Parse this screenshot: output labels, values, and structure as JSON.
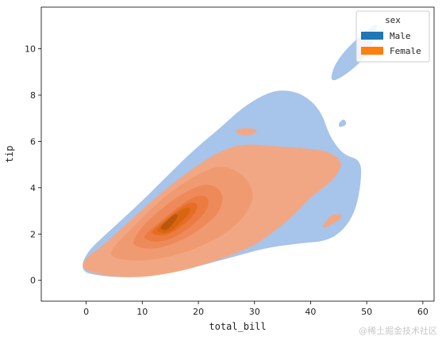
{
  "chart_data": {
    "type": "kde-filled-contour",
    "xlabel": "total_bill",
    "ylabel": "tip",
    "xlim": [
      -8,
      62
    ],
    "ylim": [
      -0.9,
      11.8
    ],
    "x_ticks": [
      0,
      10,
      20,
      30,
      40,
      50,
      60
    ],
    "y_ticks": [
      0,
      2,
      4,
      6,
      8,
      10
    ],
    "legend": {
      "title": "sex",
      "placement": "top-right"
    },
    "series": [
      {
        "name": "Male",
        "color": "#1f77b4",
        "fill": "#a7c4ea",
        "regions": [
          [
            [
              -1,
              0.4
            ],
            [
              2,
              0.2
            ],
            [
              8,
              0.1
            ],
            [
              14,
              0.3
            ],
            [
              20,
              0.6
            ],
            [
              26,
              1.0
            ],
            [
              32,
              1.4
            ],
            [
              38,
              1.6
            ],
            [
              43,
              1.7
            ],
            [
              46,
              2.2
            ],
            [
              48,
              3.0
            ],
            [
              49,
              4.2
            ],
            [
              49,
              5.2
            ],
            [
              46,
              5.4
            ],
            [
              44,
              6.0
            ],
            [
              43,
              6.5
            ],
            [
              42,
              7.2
            ],
            [
              40,
              7.8
            ],
            [
              37,
              8.2
            ],
            [
              33,
              8.2
            ],
            [
              28,
              7.5
            ],
            [
              24,
              6.6
            ],
            [
              19,
              5.6
            ],
            [
              14,
              4.4
            ],
            [
              9,
              3.2
            ],
            [
              4,
              2.1
            ],
            [
              0,
              1.2
            ]
          ],
          [
            [
              43.5,
              8.5
            ],
            [
              47,
              9.0
            ],
            [
              50,
              9.7
            ],
            [
              51.5,
              10.5
            ],
            [
              52,
              11.2
            ],
            [
              49,
              10.6
            ],
            [
              46,
              9.9
            ],
            [
              44,
              9.2
            ]
          ],
          [
            [
              45,
              6.6
            ],
            [
              46.5,
              6.7
            ],
            [
              46,
              7.0
            ],
            [
              45,
              6.8
            ]
          ]
        ]
      },
      {
        "name": "Female",
        "color": "#ff7f0e",
        "fill": "#f2a784",
        "levels": [
          [
            [
              -1,
              0.5
            ],
            [
              3,
              0.2
            ],
            [
              9,
              0.1
            ],
            [
              15,
              0.3
            ],
            [
              20,
              0.6
            ],
            [
              25,
              1.0
            ],
            [
              30,
              1.5
            ],
            [
              34,
              2.2
            ],
            [
              37,
              2.8
            ],
            [
              40,
              3.6
            ],
            [
              44,
              4.3
            ],
            [
              46,
              5.1
            ],
            [
              43,
              5.6
            ],
            [
              39,
              5.7
            ],
            [
              33,
              5.8
            ],
            [
              28,
              5.9
            ],
            [
              24,
              5.6
            ],
            [
              20,
              5.0
            ],
            [
              16,
              4.3
            ],
            [
              12,
              3.5
            ],
            [
              7,
              2.4
            ],
            [
              3,
              1.5
            ],
            [
              0,
              1.0
            ]
          ],
          [
            [
              4,
              1.0
            ],
            [
              9,
              0.8
            ],
            [
              15,
              1.0
            ],
            [
              21,
              1.5
            ],
            [
              26,
              2.2
            ],
            [
              29,
              3.0
            ],
            [
              30,
              3.8
            ],
            [
              28,
              4.6
            ],
            [
              24,
              5.0
            ],
            [
              20,
              4.6
            ],
            [
              16,
              4.0
            ],
            [
              12,
              3.2
            ],
            [
              8,
              2.2
            ],
            [
              5,
              1.5
            ]
          ],
          [
            [
              8,
              1.5
            ],
            [
              12,
              1.3
            ],
            [
              17,
              1.7
            ],
            [
              21,
              2.3
            ],
            [
              24,
              3.0
            ],
            [
              24.5,
              3.8
            ],
            [
              22,
              4.2
            ],
            [
              19,
              4.0
            ],
            [
              15,
              3.4
            ],
            [
              11,
              2.6
            ],
            [
              9,
              2.0
            ]
          ],
          [
            [
              10,
              1.8
            ],
            [
              13,
              1.6
            ],
            [
              17,
              2.0
            ],
            [
              20,
              2.6
            ],
            [
              22,
              3.2
            ],
            [
              21.5,
              3.7
            ],
            [
              19,
              3.6
            ],
            [
              16,
              3.1
            ],
            [
              13,
              2.5
            ],
            [
              11,
              2.1
            ]
          ],
          [
            [
              11.5,
              2.0
            ],
            [
              14,
              1.9
            ],
            [
              17,
              2.3
            ],
            [
              19.5,
              2.9
            ],
            [
              20,
              3.3
            ],
            [
              18.5,
              3.4
            ],
            [
              16,
              3.0
            ],
            [
              13.5,
              2.5
            ],
            [
              12,
              2.2
            ]
          ],
          [
            [
              12.5,
              2.1
            ],
            [
              14.5,
              2.0
            ],
            [
              16.5,
              2.4
            ],
            [
              18.5,
              2.9
            ],
            [
              18.5,
              3.2
            ],
            [
              16.5,
              3.0
            ],
            [
              14.5,
              2.6
            ],
            [
              13,
              2.3
            ]
          ],
          [
            [
              13.2,
              2.2
            ],
            [
              14.5,
              2.15
            ],
            [
              15.5,
              2.45
            ],
            [
              16.5,
              2.8
            ],
            [
              15.8,
              2.9
            ],
            [
              14.5,
              2.6
            ],
            [
              13.5,
              2.4
            ]
          ]
        ],
        "level_colors": [
          "#f2a784",
          "#f09a72",
          "#ee8a5a",
          "#eb7b40",
          "#e66d24",
          "#d8650f",
          "#b9580b"
        ],
        "extra_regions": [
          [
            [
              26,
              6.4
            ],
            [
              29,
              6.2
            ],
            [
              31,
              6.5
            ],
            [
              28,
              6.6
            ]
          ],
          [
            [
              42,
              2.2
            ],
            [
              44.5,
              2.5
            ],
            [
              46,
              2.8
            ],
            [
              44,
              2.9
            ],
            [
              42.5,
              2.5
            ]
          ]
        ]
      }
    ]
  },
  "watermark": "@稀土掘金技术社区"
}
